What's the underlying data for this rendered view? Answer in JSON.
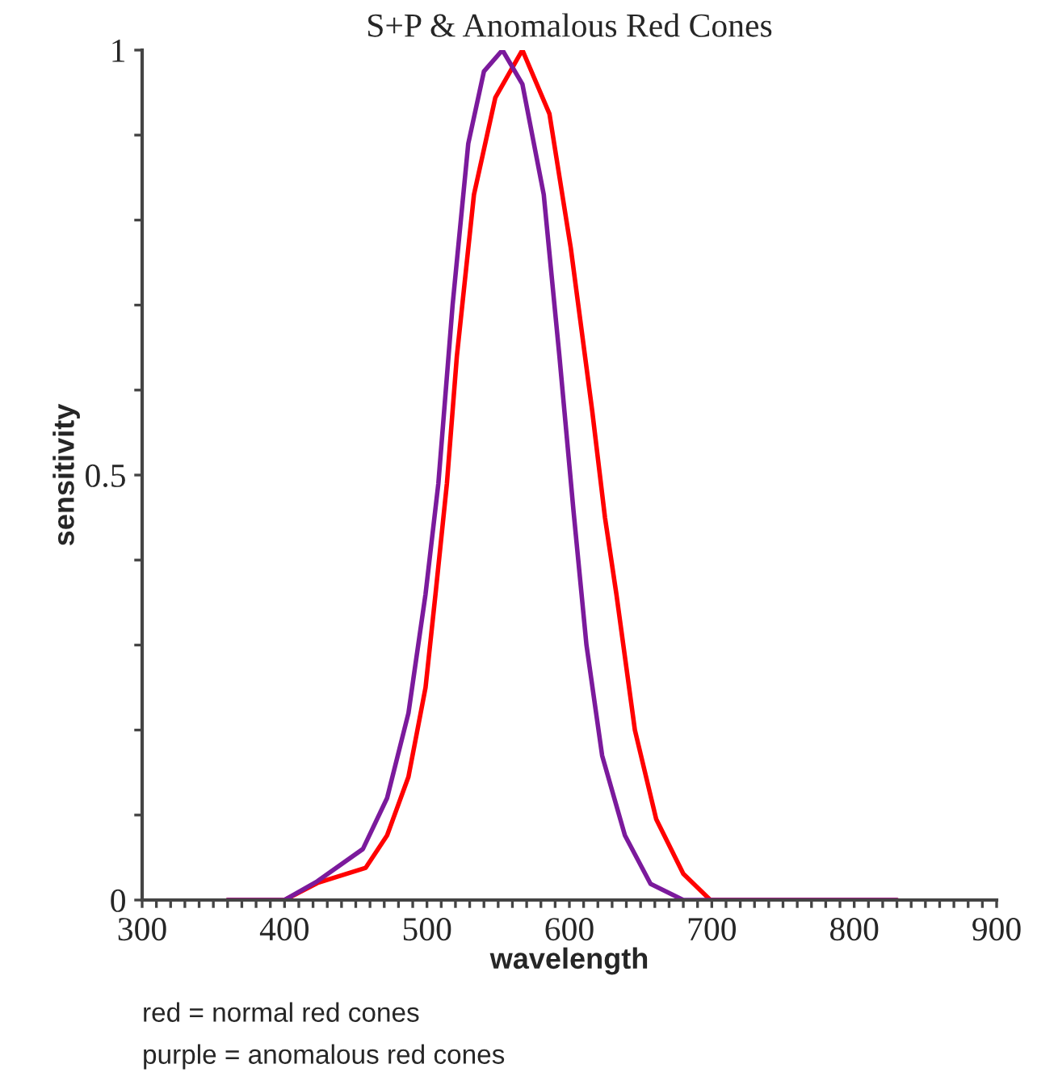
{
  "chart_data": {
    "type": "line",
    "title": "S+P & Anomalous Red Cones",
    "xlabel": "wavelength",
    "ylabel": "sensitivity",
    "annotations": [
      "red = normal red cones",
      "purple = anomalous red cones"
    ],
    "xlim": [
      300,
      900
    ],
    "ylim": [
      0,
      1
    ],
    "xticks": [
      300,
      {
        "value": 310,
        "label": null
      },
      {
        "value": 320,
        "label": null
      },
      {
        "value": 330,
        "label": null
      },
      {
        "value": 340,
        "label": null
      },
      {
        "value": 350,
        "label": null
      },
      {
        "value": 360,
        "label": null
      },
      {
        "value": 370,
        "label": null
      },
      {
        "value": 380,
        "label": null
      },
      {
        "value": 390,
        "label": null
      },
      400,
      {
        "value": 410,
        "label": null
      },
      {
        "value": 420,
        "label": null
      },
      {
        "value": 430,
        "label": null
      },
      {
        "value": 440,
        "label": null
      },
      {
        "value": 450,
        "label": null
      },
      {
        "value": 460,
        "label": null
      },
      {
        "value": 470,
        "label": null
      },
      {
        "value": 480,
        "label": null
      },
      {
        "value": 490,
        "label": null
      },
      500,
      {
        "value": 510,
        "label": null
      },
      {
        "value": 520,
        "label": null
      },
      {
        "value": 530,
        "label": null
      },
      {
        "value": 540,
        "label": null
      },
      {
        "value": 550,
        "label": null
      },
      {
        "value": 560,
        "label": null
      },
      {
        "value": 570,
        "label": null
      },
      {
        "value": 580,
        "label": null
      },
      {
        "value": 590,
        "label": null
      },
      600,
      {
        "value": 610,
        "label": null
      },
      {
        "value": 620,
        "label": null
      },
      {
        "value": 630,
        "label": null
      },
      {
        "value": 640,
        "label": null
      },
      {
        "value": 650,
        "label": null
      },
      {
        "value": 660,
        "label": null
      },
      {
        "value": 670,
        "label": null
      },
      {
        "value": 680,
        "label": null
      },
      {
        "value": 690,
        "label": null
      },
      700,
      {
        "value": 710,
        "label": null
      },
      {
        "value": 720,
        "label": null
      },
      {
        "value": 730,
        "label": null
      },
      {
        "value": 740,
        "label": null
      },
      {
        "value": 750,
        "label": null
      },
      {
        "value": 760,
        "label": null
      },
      {
        "value": 770,
        "label": null
      },
      {
        "value": 780,
        "label": null
      },
      {
        "value": 790,
        "label": null
      },
      800,
      {
        "value": 810,
        "label": null
      },
      {
        "value": 820,
        "label": null
      },
      {
        "value": 830,
        "label": null
      },
      {
        "value": 840,
        "label": null
      },
      {
        "value": 850,
        "label": null
      },
      {
        "value": 860,
        "label": null
      },
      {
        "value": 870,
        "label": null
      },
      {
        "value": 880,
        "label": null
      },
      {
        "value": 890,
        "label": null
      },
      900
    ],
    "yticks": [
      0,
      {
        "value": 0.1,
        "label": null
      },
      {
        "value": 0.2,
        "label": null
      },
      {
        "value": 0.3,
        "label": null
      },
      {
        "value": 0.4,
        "label": null
      },
      0.5,
      {
        "value": 0.6,
        "label": null
      },
      {
        "value": 0.7,
        "label": null
      },
      {
        "value": 0.8,
        "label": null
      },
      {
        "value": 0.9,
        "label": null
      },
      1
    ],
    "grid": false,
    "legend": false,
    "marker": "none",
    "line_style": "solid",
    "series": [
      {
        "color": "#ff0000",
        "x": [
          360,
          400,
          423,
          457,
          472,
          487,
          499,
          506,
          514,
          521,
          533,
          548,
          567,
          586,
          601,
          616,
          625,
          633,
          646,
          661,
          680,
          699,
          830
        ],
        "values": [
          0,
          0,
          0.02,
          0.038,
          0.076,
          0.145,
          0.25,
          0.36,
          0.49,
          0.64,
          0.83,
          0.944,
          1.0,
          0.925,
          0.767,
          0.576,
          0.45,
          0.36,
          0.2,
          0.095,
          0.031,
          0,
          0
        ]
      },
      {
        "color": "#7b1a9c",
        "x": [
          360,
          400,
          423,
          455,
          472,
          487,
          499,
          508,
          518,
          529,
          540,
          553,
          567,
          582,
          593,
          603,
          612,
          623,
          639,
          657,
          680,
          830
        ],
        "values": [
          0,
          0,
          0.022,
          0.06,
          0.12,
          0.22,
          0.36,
          0.49,
          0.7,
          0.89,
          0.975,
          1.0,
          0.96,
          0.83,
          0.64,
          0.456,
          0.3,
          0.17,
          0.076,
          0.019,
          0,
          0
        ]
      }
    ]
  }
}
